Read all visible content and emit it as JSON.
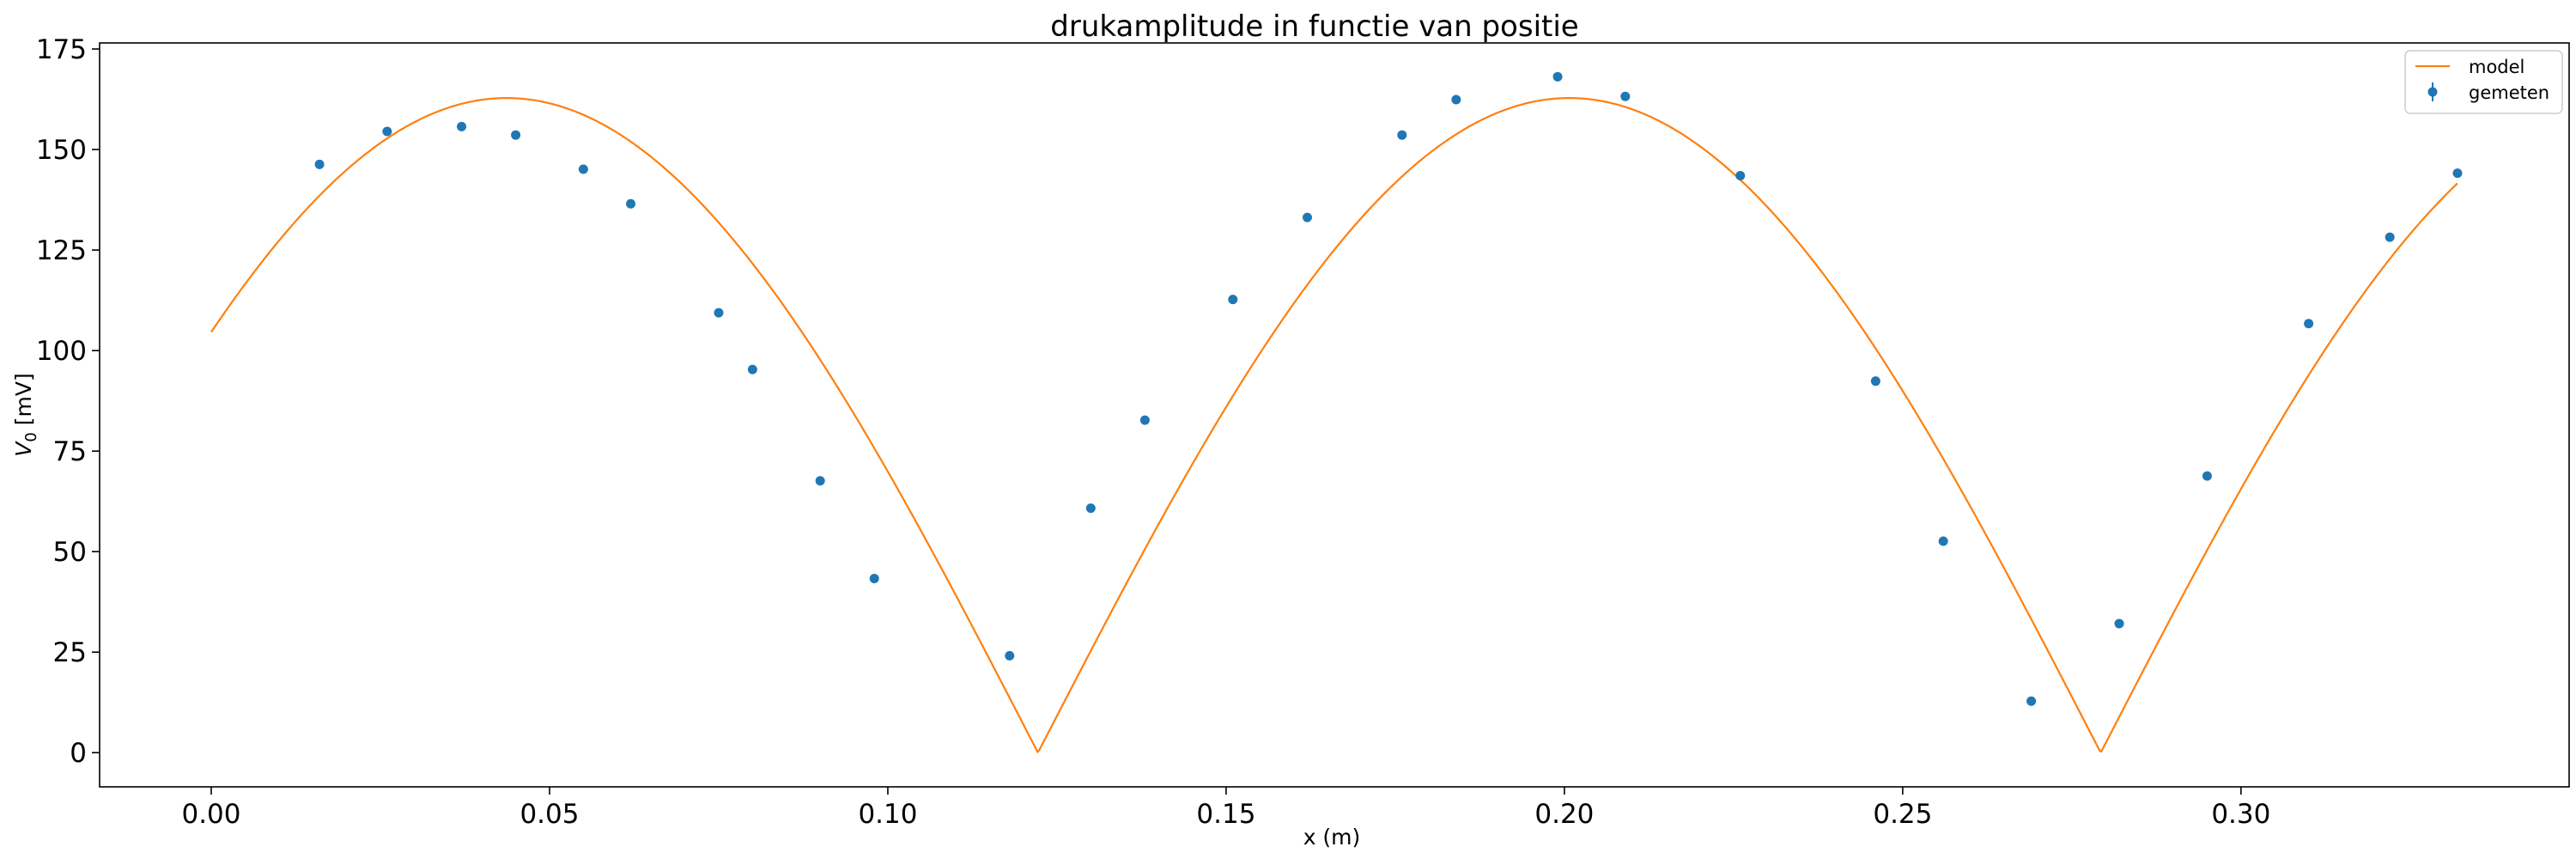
{
  "chart_data": {
    "type": "scatter",
    "title": "drukamplitude in functie van positie",
    "xlabel": "x (m)",
    "ylabel_main": "V",
    "ylabel_sub": "0",
    "ylabel_unit": " [mV]",
    "xlim": [
      -0.0165,
      0.3485
    ],
    "ylim": [
      -8.5,
      176.5
    ],
    "xticks": [
      {
        "value": 0.0,
        "label": "0.00"
      },
      {
        "value": 0.05,
        "label": "0.05"
      },
      {
        "value": 0.1,
        "label": "0.10"
      },
      {
        "value": 0.15,
        "label": "0.15"
      },
      {
        "value": 0.2,
        "label": "0.20"
      },
      {
        "value": 0.25,
        "label": "0.25"
      },
      {
        "value": 0.3,
        "label": "0.30"
      }
    ],
    "yticks": [
      {
        "value": 0,
        "label": "0"
      },
      {
        "value": 25,
        "label": "25"
      },
      {
        "value": 50,
        "label": "50"
      },
      {
        "value": 75,
        "label": "75"
      },
      {
        "value": 100,
        "label": "100"
      },
      {
        "value": 125,
        "label": "125"
      },
      {
        "value": 150,
        "label": "150"
      },
      {
        "value": 175,
        "label": "175"
      }
    ],
    "grid": false,
    "legend_position": "top-right",
    "series": [
      {
        "name": "model",
        "kind": "line",
        "color": "#ff7f0e",
        "model": {
          "amplitude": 162.8,
          "k": 20.0,
          "phase": 0.873,
          "x_start": 0.0,
          "x_end": 0.332
        }
      },
      {
        "name": "gemeten",
        "kind": "errorbar-points",
        "color": "#1f77b4",
        "points": [
          {
            "x": 0.016,
            "y": 146.3
          },
          {
            "x": 0.026,
            "y": 154.5
          },
          {
            "x": 0.037,
            "y": 155.7
          },
          {
            "x": 0.045,
            "y": 153.6
          },
          {
            "x": 0.055,
            "y": 145.1
          },
          {
            "x": 0.062,
            "y": 136.5
          },
          {
            "x": 0.075,
            "y": 109.4
          },
          {
            "x": 0.08,
            "y": 95.3
          },
          {
            "x": 0.09,
            "y": 67.6
          },
          {
            "x": 0.098,
            "y": 43.3
          },
          {
            "x": 0.118,
            "y": 24.1
          },
          {
            "x": 0.13,
            "y": 60.8
          },
          {
            "x": 0.138,
            "y": 82.7
          },
          {
            "x": 0.151,
            "y": 112.7
          },
          {
            "x": 0.162,
            "y": 133.1
          },
          {
            "x": 0.176,
            "y": 153.6
          },
          {
            "x": 0.184,
            "y": 162.4
          },
          {
            "x": 0.199,
            "y": 168.1
          },
          {
            "x": 0.209,
            "y": 163.2
          },
          {
            "x": 0.226,
            "y": 143.5
          },
          {
            "x": 0.246,
            "y": 92.4
          },
          {
            "x": 0.256,
            "y": 52.6
          },
          {
            "x": 0.269,
            "y": 12.8
          },
          {
            "x": 0.282,
            "y": 32.1
          },
          {
            "x": 0.295,
            "y": 68.8
          },
          {
            "x": 0.31,
            "y": 106.7
          },
          {
            "x": 0.322,
            "y": 128.2
          },
          {
            "x": 0.332,
            "y": 144.1
          }
        ]
      }
    ]
  }
}
